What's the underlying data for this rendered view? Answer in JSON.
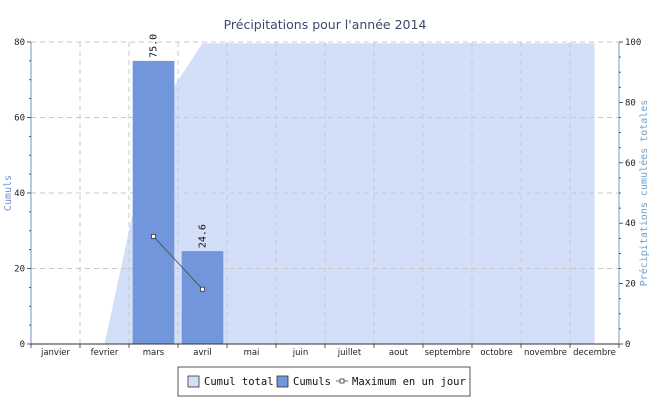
{
  "chart_data": {
    "type": "bar",
    "title": "Précipitations pour l'année 2014",
    "categories": [
      "janvier",
      "fevrier",
      "mars",
      "avril",
      "mai",
      "juin",
      "juillet",
      "aout",
      "septembre",
      "octobre",
      "novembre",
      "decembre"
    ],
    "series": [
      {
        "name": "Cumul total",
        "type": "area",
        "axis": "right",
        "values": [
          0,
          0,
          75.0,
          99.6,
          99.6,
          99.6,
          99.6,
          99.6,
          99.6,
          99.6,
          99.6,
          99.6
        ],
        "color": "#d3dff8"
      },
      {
        "name": "Cumuls",
        "type": "bar",
        "axis": "left",
        "values": [
          0,
          0,
          75.0,
          24.6,
          0,
          0,
          0,
          0,
          0,
          0,
          0,
          0
        ],
        "data_labels": [
          null,
          null,
          "75.0",
          "24.6",
          null,
          null,
          null,
          null,
          null,
          null,
          null,
          null
        ],
        "color": "#7196dc"
      },
      {
        "name": "Maximum en un jour",
        "type": "line",
        "axis": "left",
        "values": [
          null,
          null,
          28.5,
          14.5,
          null,
          null,
          null,
          null,
          null,
          null,
          null,
          null
        ],
        "color": "#444444"
      }
    ],
    "y_left": {
      "label": "Cumuls",
      "ylim": [
        0,
        80
      ],
      "ticks": [
        "0",
        "20",
        "40",
        "60",
        "80"
      ]
    },
    "y_right": {
      "label": "Précipitations cumulées totales",
      "ylim": [
        0,
        100
      ],
      "ticks": [
        "0",
        "20",
        "40",
        "60",
        "80",
        "100"
      ]
    },
    "grid": true,
    "legend_position": "bottom-center"
  }
}
